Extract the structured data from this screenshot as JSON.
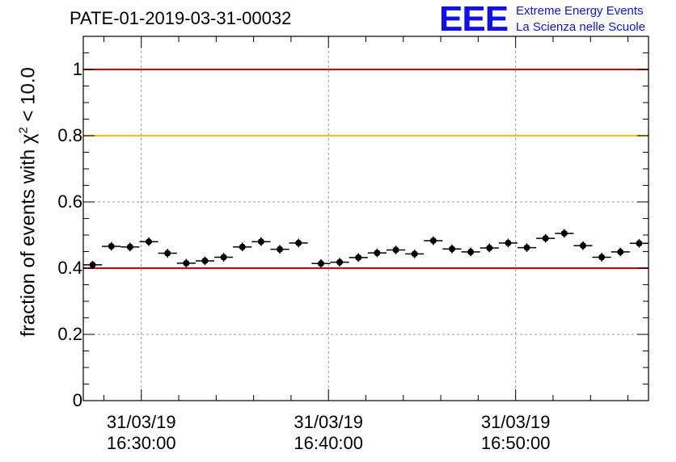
{
  "chart_data": {
    "type": "scatter",
    "title": "PATE-01-2019-03-31-00032",
    "ylabel_prefix": "fraction of events with ",
    "ylabel_symbol": "χ",
    "ylabel_sup": "2",
    "ylabel_suffix": " < 10.0",
    "ylim": [
      0,
      1.1
    ],
    "y_ticks": [
      "0",
      "0.2",
      "0.4",
      "0.6",
      "0.8",
      "1"
    ],
    "x_ticks": [
      {
        "date": "31/03/19",
        "time": "16:30:00",
        "minutes": 30
      },
      {
        "date": "31/03/19",
        "time": "16:40:00",
        "minutes": 40
      },
      {
        "date": "31/03/19",
        "time": "16:50:00",
        "minutes": 50
      }
    ],
    "x_range_minutes": [
      26.9,
      57.1
    ],
    "grid": true,
    "reference_lines": [
      {
        "y": 1.0,
        "color": "#e00000"
      },
      {
        "y": 0.8,
        "color": "#ffc000"
      },
      {
        "y": 0.4,
        "color": "#e00000"
      }
    ],
    "bin_width_minutes": 1,
    "points": [
      {
        "x": 27.4,
        "y": 0.41,
        "err": 0.012
      },
      {
        "x": 28.4,
        "y": 0.466,
        "err": 0.013
      },
      {
        "x": 29.4,
        "y": 0.464,
        "err": 0.013
      },
      {
        "x": 30.4,
        "y": 0.48,
        "err": 0.013
      },
      {
        "x": 31.4,
        "y": 0.445,
        "err": 0.013
      },
      {
        "x": 32.4,
        "y": 0.415,
        "err": 0.013
      },
      {
        "x": 33.4,
        "y": 0.422,
        "err": 0.013
      },
      {
        "x": 34.4,
        "y": 0.433,
        "err": 0.013
      },
      {
        "x": 35.4,
        "y": 0.464,
        "err": 0.013
      },
      {
        "x": 36.4,
        "y": 0.48,
        "err": 0.013
      },
      {
        "x": 37.4,
        "y": 0.457,
        "err": 0.013
      },
      {
        "x": 38.4,
        "y": 0.476,
        "err": 0.013
      },
      {
        "x": 39.6,
        "y": 0.414,
        "err": 0.013
      },
      {
        "x": 40.6,
        "y": 0.418,
        "err": 0.013
      },
      {
        "x": 41.6,
        "y": 0.432,
        "err": 0.013
      },
      {
        "x": 42.6,
        "y": 0.446,
        "err": 0.013
      },
      {
        "x": 43.6,
        "y": 0.455,
        "err": 0.013
      },
      {
        "x": 44.6,
        "y": 0.443,
        "err": 0.013
      },
      {
        "x": 45.6,
        "y": 0.483,
        "err": 0.013
      },
      {
        "x": 46.6,
        "y": 0.458,
        "err": 0.013
      },
      {
        "x": 47.6,
        "y": 0.449,
        "err": 0.013
      },
      {
        "x": 48.6,
        "y": 0.461,
        "err": 0.013
      },
      {
        "x": 49.6,
        "y": 0.476,
        "err": 0.013
      },
      {
        "x": 50.6,
        "y": 0.462,
        "err": 0.013
      },
      {
        "x": 51.6,
        "y": 0.49,
        "err": 0.013
      },
      {
        "x": 52.6,
        "y": 0.505,
        "err": 0.013
      },
      {
        "x": 53.6,
        "y": 0.468,
        "err": 0.013
      },
      {
        "x": 54.6,
        "y": 0.433,
        "err": 0.013
      },
      {
        "x": 55.6,
        "y": 0.449,
        "err": 0.013
      },
      {
        "x": 56.6,
        "y": 0.475,
        "err": 0.013
      }
    ]
  },
  "logo": {
    "mark": "EEE",
    "line1": "Extreme Energy Events",
    "line2": "La Scienza nelle Scuole"
  }
}
